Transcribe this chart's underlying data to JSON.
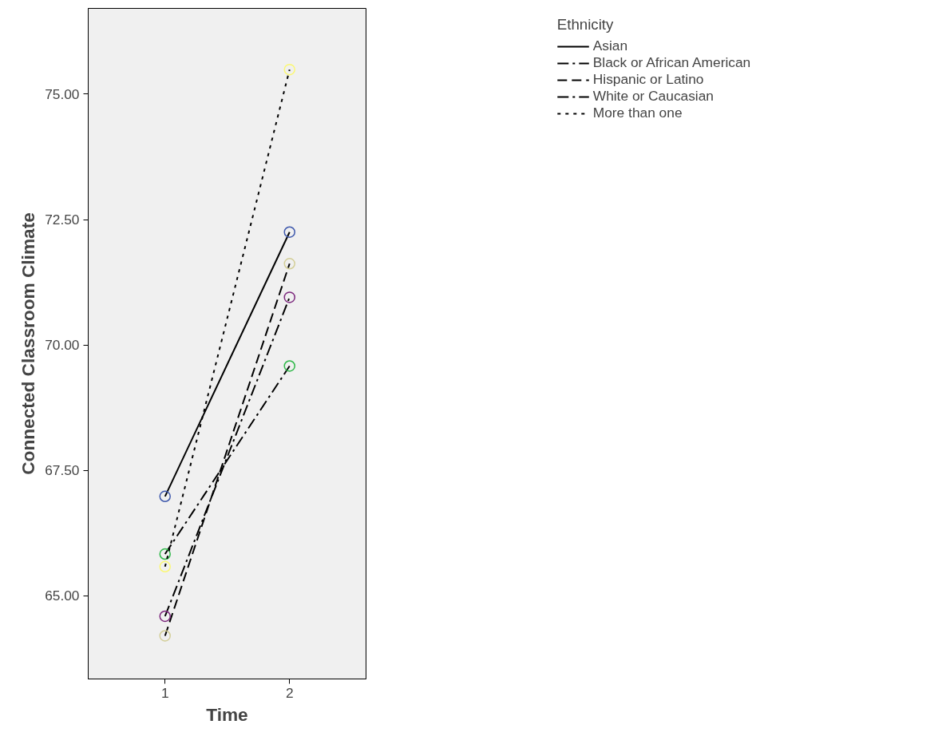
{
  "chart_data": {
    "type": "line",
    "xlabel": "Time",
    "ylabel": "Connected Classroom Climate",
    "legend_title": "Ethnicity",
    "x": [
      1,
      2
    ],
    "xlim": [
      0.383,
      2.614
    ],
    "xticks": [
      {
        "value": 1,
        "label": "1"
      },
      {
        "value": 2,
        "label": "2"
      }
    ],
    "ylim": [
      63.34,
      76.71
    ],
    "yticks": [
      {
        "value": 65,
        "label": "65.00"
      },
      {
        "value": 67.5,
        "label": "67.50"
      },
      {
        "value": 70,
        "label": "70.00"
      },
      {
        "value": 72.5,
        "label": "72.50"
      },
      {
        "value": 75,
        "label": "75.00"
      }
    ],
    "grid": false,
    "legend": "top right",
    "marker": "circle",
    "series": [
      {
        "name": "Asian",
        "color": "#3e58ac",
        "line_style": "solid",
        "values": [
          66.98,
          72.25
        ]
      },
      {
        "name": "Black or African American",
        "color": "#2eb848",
        "line_style": "dashdot",
        "values": [
          65.83,
          69.58
        ]
      },
      {
        "name": "Hispanic or Latino",
        "color": "#d3ce97",
        "line_style": "dashed",
        "values": [
          64.2,
          71.62
        ]
      },
      {
        "name": "White or Caucasian",
        "color": "#7c287d",
        "line_style": "dashdot",
        "values": [
          64.59,
          70.95
        ]
      },
      {
        "name": "More than one",
        "color": "#fbf873",
        "line_style": "dotted",
        "values": [
          65.58,
          75.49
        ]
      }
    ]
  }
}
